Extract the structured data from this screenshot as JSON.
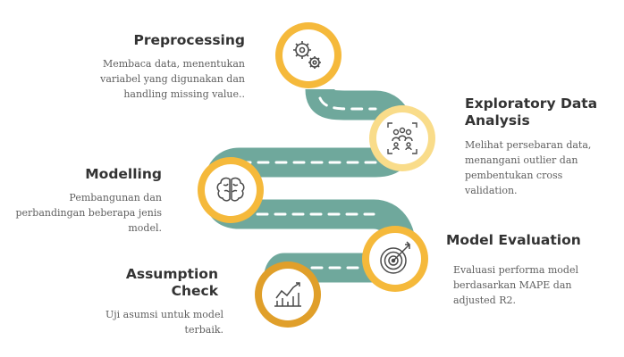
{
  "colors": {
    "road": "#6fa89c",
    "dash": "#ffffff",
    "ring_gold": "#f5b93b",
    "ring_light": "#f9dc8a",
    "ring_dark": "#e09f2a",
    "icon": "#4a4a4a"
  },
  "stages": [
    {
      "title": "Preprocessing",
      "description": "Membaca data, menentukan variabel yang digunakan dan handling missing value..",
      "icon": "gears-icon"
    },
    {
      "title": "Exploratory Data Analysis",
      "description": "Melihat persebaran data, menangani outlier dan pembentukan cross validation.",
      "icon": "people-network-icon"
    },
    {
      "title": "Modelling",
      "description": "Pembangunan dan perbandingan beberapa jenis model.",
      "icon": "brain-icon"
    },
    {
      "title": "Model Evaluation",
      "description": "Evaluasi performa model berdasarkan MAPE dan adjusted R2.",
      "icon": "target-icon"
    },
    {
      "title": "Assumption Check",
      "description": "Uji asumsi untuk model terbaik.",
      "icon": "line-chart-icon"
    }
  ]
}
